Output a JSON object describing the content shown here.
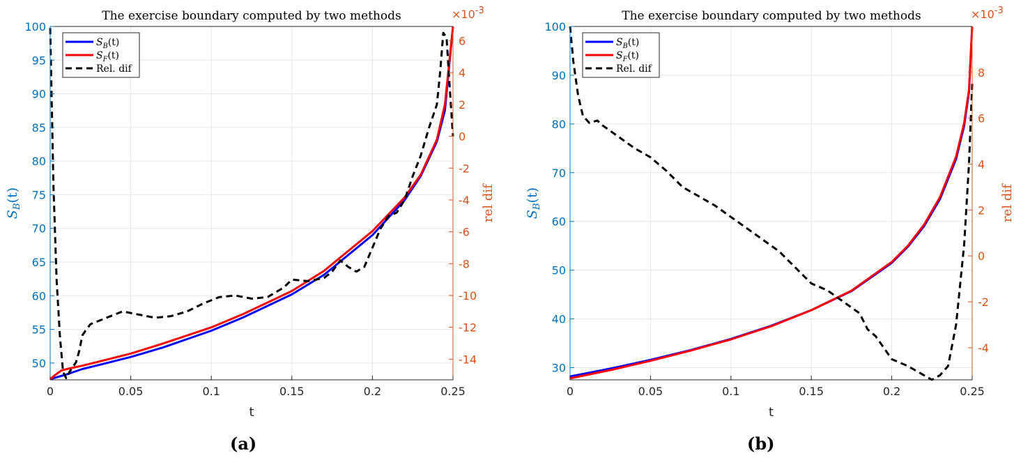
{
  "panels": [
    {
      "label": "(a)",
      "chart_data": {
        "type": "line",
        "title": "The exercise boundary computed by two methods",
        "xlabel": "t",
        "ylabel": "S_B(t)",
        "y2label": "rel dif",
        "y2_exponent": "×10^-3",
        "xlim": [
          0,
          0.25
        ],
        "ylim": [
          47.5,
          100
        ],
        "y2lim": [
          -15.3,
          6.9
        ],
        "xticks": [
          0,
          0.05,
          0.1,
          0.15,
          0.2,
          0.25
        ],
        "xtick_labels": [
          "0",
          "0.05",
          "0.1",
          "0.15",
          "0.2",
          "0.25"
        ],
        "yticks": [
          50,
          55,
          60,
          65,
          70,
          75,
          80,
          85,
          90,
          95,
          100
        ],
        "ytick_labels": [
          "50",
          "55",
          "60",
          "65",
          "70",
          "75",
          "80",
          "85",
          "90",
          "95",
          "100"
        ],
        "y2ticks": [
          -14,
          -12,
          -10,
          -8,
          -6,
          -4,
          -2,
          0,
          2,
          4,
          6
        ],
        "y2tick_labels": [
          "-14",
          "-12",
          "-10",
          "-8",
          "-6",
          "-4",
          "-2",
          "0",
          "2",
          "4",
          "6"
        ],
        "legend_position": "top-left",
        "series": [
          {
            "name": "S_B(t)",
            "axis": "left",
            "color": "#0000ff",
            "style": "solid",
            "x": [
              0,
              0.01,
              0.02,
              0.03,
              0.05,
              0.07,
              0.1,
              0.12,
              0.15,
              0.17,
              0.2,
              0.22,
              0.23,
              0.24,
              0.245,
              0.25
            ],
            "y": [
              47.6,
              48.3,
              49.1,
              49.7,
              50.9,
              52.3,
              54.8,
              56.8,
              60.2,
              63.1,
              69.0,
              74.2,
              77.8,
              82.9,
              87.5,
              100
            ]
          },
          {
            "name": "S_F(t)",
            "axis": "left",
            "color": "#ff0000",
            "style": "solid",
            "x": [
              0,
              0.003,
              0.007,
              0.012,
              0.02,
              0.03,
              0.05,
              0.07,
              0.1,
              0.12,
              0.15,
              0.17,
              0.2,
              0.22,
              0.23,
              0.24,
              0.245,
              0.25
            ],
            "y": [
              47.6,
              48.2,
              48.9,
              49.2,
              49.6,
              50.2,
              51.4,
              52.9,
              55.3,
              57.3,
              60.7,
              63.7,
              69.6,
              74.6,
              78.0,
              83.2,
              88.4,
              100
            ]
          },
          {
            "name": "Rel. dif",
            "axis": "right",
            "color": "#000000",
            "style": "dashed",
            "x": [
              0,
              0.001,
              0.002,
              0.004,
              0.006,
              0.008,
              0.01,
              0.012,
              0.014,
              0.016,
              0.018,
              0.02,
              0.022,
              0.025,
              0.03,
              0.035,
              0.045,
              0.055,
              0.065,
              0.075,
              0.085,
              0.095,
              0.105,
              0.115,
              0.125,
              0.135,
              0.145,
              0.15,
              0.16,
              0.17,
              0.175,
              0.18,
              0.185,
              0.19,
              0.195,
              0.2,
              0.205,
              0.21,
              0.215,
              0.22,
              0.225,
              0.23,
              0.235,
              0.24,
              0.242,
              0.244,
              0.246,
              0.248,
              0.25
            ],
            "y": [
              6.8,
              2.0,
              -3.0,
              -9.0,
              -12.5,
              -14.8,
              -15.2,
              -14.8,
              -14.5,
              -14.2,
              -13.5,
              -12.5,
              -12.2,
              -11.8,
              -11.6,
              -11.4,
              -11.0,
              -11.2,
              -11.4,
              -11.3,
              -11.0,
              -10.5,
              -10.1,
              -10.0,
              -10.2,
              -10.1,
              -9.5,
              -9.0,
              -9.1,
              -8.9,
              -8.5,
              -7.8,
              -8.2,
              -8.5,
              -8.2,
              -7.0,
              -5.8,
              -5.0,
              -4.8,
              -4.0,
              -2.5,
              -1.2,
              0.5,
              2.0,
              4.0,
              6.5,
              6.2,
              3.0,
              0.0
            ]
          }
        ]
      }
    },
    {
      "label": "(b)",
      "chart_data": {
        "type": "line",
        "title": "The exercise boundary computed by two methods",
        "xlabel": "t",
        "ylabel": "S_B(t)",
        "y2label": "rel dif",
        "y2_exponent": "×10^-3",
        "xlim": [
          0,
          0.25
        ],
        "ylim": [
          27.5,
          100
        ],
        "y2lim": [
          -5.4,
          10
        ],
        "xticks": [
          0,
          0.05,
          0.1,
          0.15,
          0.2,
          0.25
        ],
        "xtick_labels": [
          "0",
          "0.05",
          "0.1",
          "0.15",
          "0.2",
          "0.25"
        ],
        "yticks": [
          30,
          40,
          50,
          60,
          70,
          80,
          90,
          100
        ],
        "ytick_labels": [
          "30",
          "40",
          "50",
          "60",
          "70",
          "80",
          "90",
          "100"
        ],
        "y2ticks": [
          -4,
          -2,
          0,
          2,
          4,
          6,
          8
        ],
        "y2tick_labels": [
          "-4",
          "-2",
          "0",
          "2",
          "4",
          "6",
          "8"
        ],
        "legend_position": "top-left",
        "series": [
          {
            "name": "S_B(t)",
            "axis": "left",
            "color": "#0000ff",
            "style": "solid",
            "x": [
              0,
              0.025,
              0.05,
              0.075,
              0.1,
              0.125,
              0.15,
              0.175,
              0.2,
              0.21,
              0.22,
              0.23,
              0.24,
              0.245,
              0.248,
              0.25
            ],
            "y": [
              28.2,
              29.8,
              31.6,
              33.6,
              35.9,
              38.6,
              41.8,
              45.7,
              51.5,
              54.8,
              59.0,
              64.6,
              72.8,
              79.6,
              86.5,
              100
            ]
          },
          {
            "name": "S_F(t)",
            "axis": "left",
            "color": "#ff0000",
            "style": "solid",
            "x": [
              0,
              0.025,
              0.05,
              0.075,
              0.1,
              0.125,
              0.15,
              0.175,
              0.2,
              0.21,
              0.22,
              0.23,
              0.24,
              0.245,
              0.248,
              0.25
            ],
            "y": [
              27.8,
              29.5,
              31.4,
              33.5,
              35.8,
              38.5,
              41.8,
              45.8,
              51.7,
              55.0,
              59.3,
              65.0,
              73.3,
              80.2,
              87.0,
              100
            ]
          },
          {
            "name": "Rel. dif",
            "axis": "right",
            "color": "#000000",
            "style": "dashed",
            "x": [
              0,
              0.002,
              0.005,
              0.008,
              0.012,
              0.017,
              0.02,
              0.03,
              0.04,
              0.05,
              0.06,
              0.07,
              0.08,
              0.09,
              0.1,
              0.11,
              0.12,
              0.13,
              0.14,
              0.15,
              0.16,
              0.17,
              0.18,
              0.185,
              0.19,
              0.195,
              0.2,
              0.21,
              0.215,
              0.22,
              0.225,
              0.23,
              0.235,
              0.24,
              0.245,
              0.248,
              0.25
            ],
            "y": [
              10.0,
              8.5,
              7.0,
              6.1,
              5.8,
              5.9,
              5.7,
              5.2,
              4.7,
              4.3,
              3.7,
              3.0,
              2.6,
              2.2,
              1.7,
              1.2,
              0.7,
              0.2,
              -0.5,
              -1.2,
              -1.5,
              -2.0,
              -2.5,
              -3.2,
              -3.5,
              -4.0,
              -4.5,
              -4.8,
              -5.0,
              -5.2,
              -5.4,
              -5.2,
              -4.8,
              -3.0,
              0.5,
              4.0,
              7.5
            ]
          }
        ]
      }
    }
  ]
}
